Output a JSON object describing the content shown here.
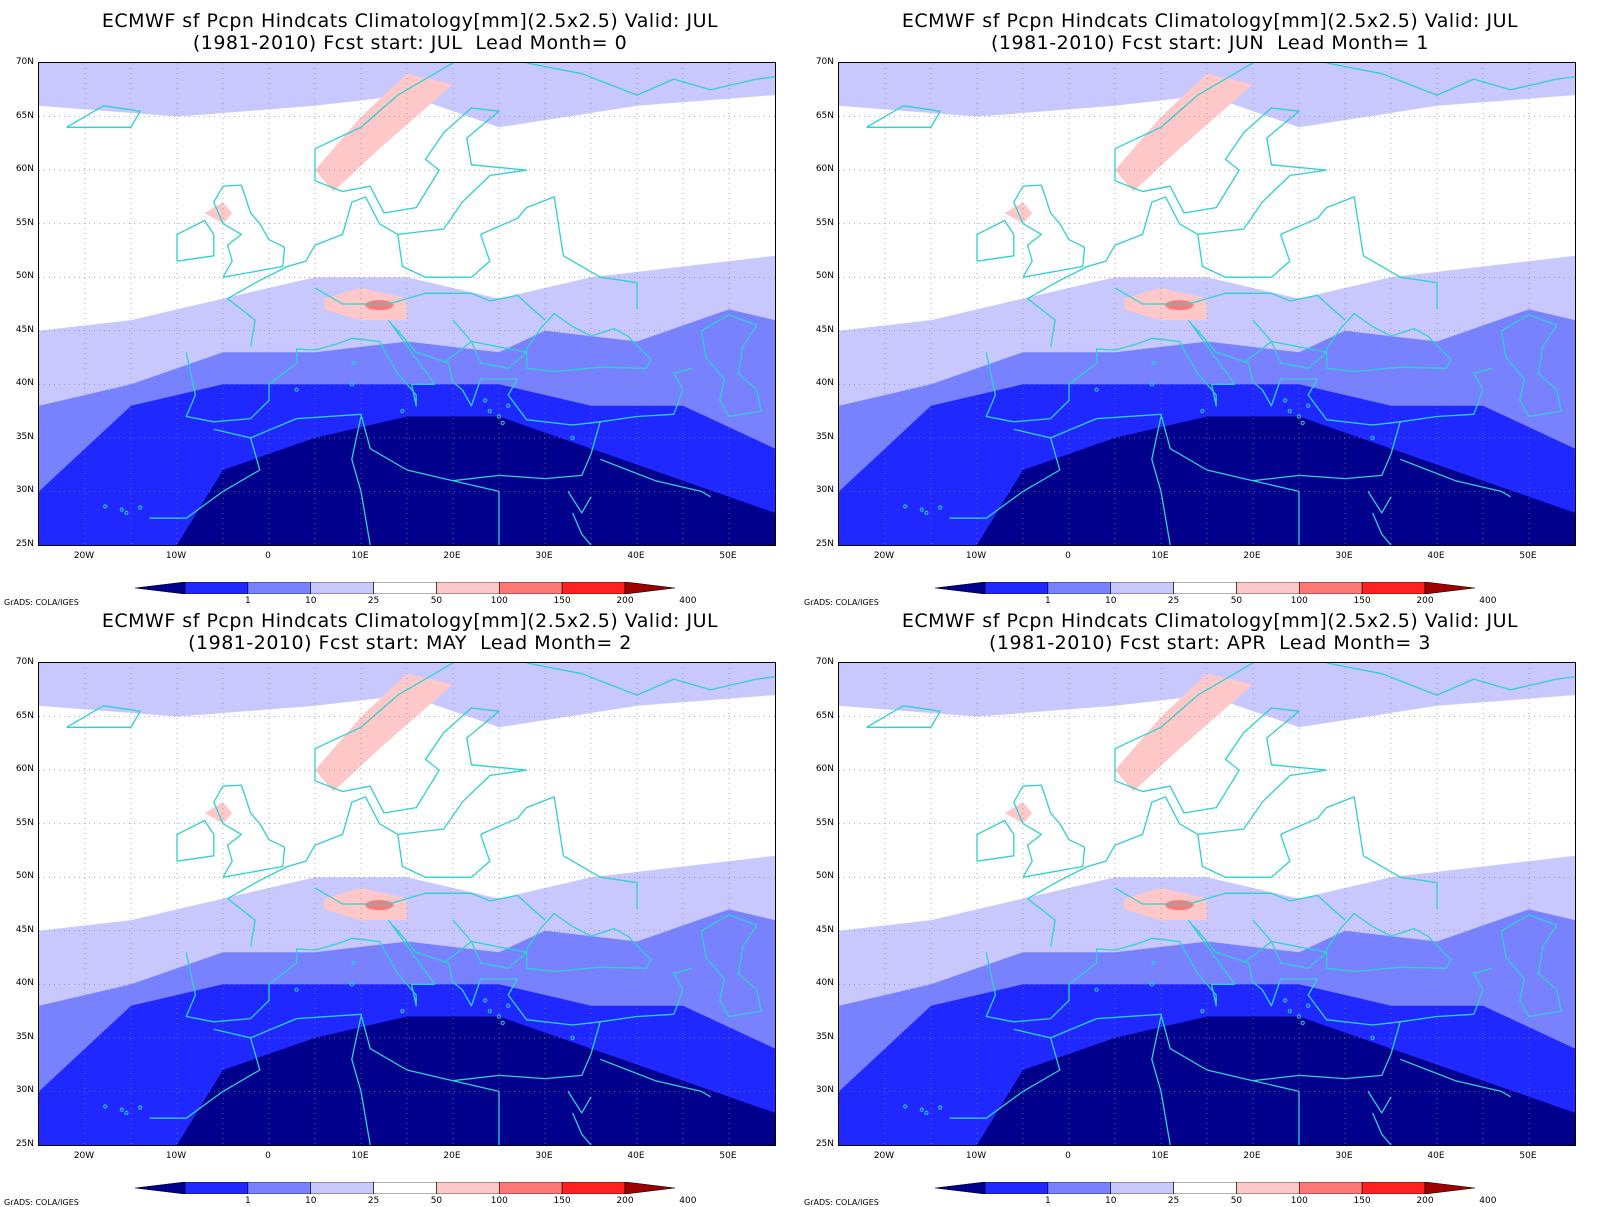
{
  "panels": [
    {
      "title_line1": "ECMWF sf Pcpn Hindcats Climatology[mm](2.5x2.5) Valid: JUL",
      "title_line2": "(1981-2010) Fcst start: JUL  Lead Month= 0",
      "forecast_start": "JUL",
      "lead_month": 0
    },
    {
      "title_line1": "ECMWF sf Pcpn Hindcats Climatology[mm](2.5x2.5) Valid: JUL",
      "title_line2": "(1981-2010) Fcst start: JUN  Lead Month= 1",
      "forecast_start": "JUN",
      "lead_month": 1
    },
    {
      "title_line1": "ECMWF sf Pcpn Hindcats Climatology[mm](2.5x2.5) Valid: JUL",
      "title_line2": "(1981-2010) Fcst start: MAY  Lead Month= 2",
      "forecast_start": "MAY",
      "lead_month": 2
    },
    {
      "title_line1": "ECMWF sf Pcpn Hindcats Climatology[mm](2.5x2.5) Valid: JUL",
      "title_line2": "(1981-2010) Fcst start: APR  Lead Month= 3",
      "forecast_start": "APR",
      "lead_month": 3
    }
  ],
  "lat_labels": [
    "70N",
    "65N",
    "60N",
    "55N",
    "50N",
    "45N",
    "40N",
    "35N",
    "30N",
    "25N"
  ],
  "lon_labels": [
    "20W",
    "10W",
    "0",
    "10E",
    "20E",
    "30E",
    "40E",
    "50E"
  ],
  "colorbar": {
    "labels": [
      "1",
      "10",
      "25",
      "50",
      "100",
      "150",
      "200",
      "400"
    ],
    "colors": [
      "#00008c",
      "#1e28ff",
      "#7882ff",
      "#c8c8ff",
      "#ffffff",
      "#ffc8c8",
      "#ff7878",
      "#ff2020",
      "#a00000"
    ]
  },
  "credit": "GrADS: COLA/IGES",
  "colors": {
    "coastline": "#30d0d0",
    "grid": "#888888",
    "very_dry": "#00008c",
    "dry": "#1e28ff",
    "moderate": "#7882ff",
    "light": "#c8c8ff",
    "wet": "#ffc8c8",
    "wetter": "#ff7878"
  },
  "map": {
    "lat_range": [
      "25N",
      "70N"
    ],
    "lon_range": [
      "25W",
      "55E"
    ],
    "grid_spacing_degrees": 5,
    "region": "Europe / North Africa / Middle East"
  }
}
